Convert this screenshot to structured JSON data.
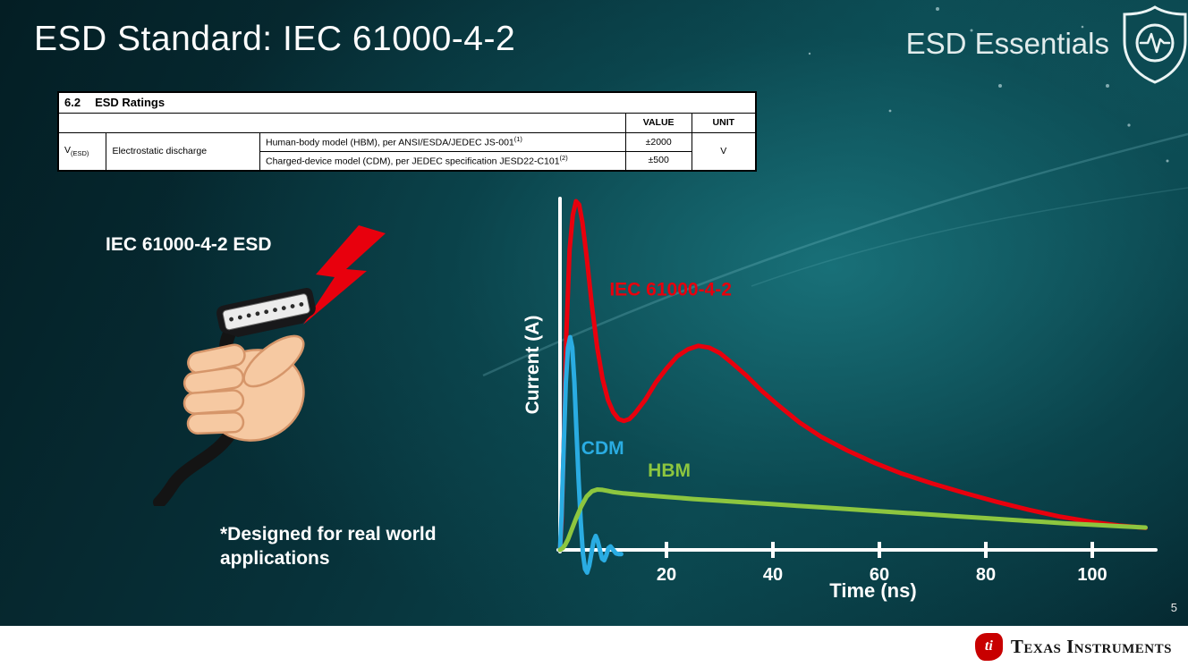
{
  "slide": {
    "title": "ESD Standard: IEC 61000-4-2",
    "series_label": "ESD Essentials",
    "page_number": "5",
    "footer_brand": "Texas Instruments"
  },
  "ratings_table": {
    "caption_number": "6.2",
    "caption_text": "ESD Ratings",
    "value_header": "VALUE",
    "unit_header": "UNIT",
    "param_symbol": "V",
    "param_symbol_sub": "(ESD)",
    "param_name": "Electrostatic discharge",
    "rows": [
      {
        "desc": "Human-body model (HBM), per ANSI/ESDA/JEDEC JS-001",
        "desc_sup": "(1)",
        "value": "±2000"
      },
      {
        "desc": "Charged-device model (CDM), per JEDEC specification JESD22-C101",
        "desc_sup": "(2)",
        "value": "±500"
      }
    ],
    "unit": "V"
  },
  "illustration": {
    "caption": "IEC 61000-4-2 ESD",
    "note_line1": "*Designed for real world",
    "note_line2": "applications"
  },
  "chart_data": {
    "type": "line",
    "title": "",
    "xlabel": "Time (ns)",
    "ylabel": "Current (A)",
    "xlim": [
      0,
      112
    ],
    "ylim": [
      -8,
      105
    ],
    "xticks": [
      20,
      40,
      60,
      80,
      100
    ],
    "yticks": [],
    "grid": false,
    "y_units": "relative amplitude (y axis unlabeled in figure)",
    "legend": "inline curve labels",
    "series": [
      {
        "name": "IEC 61000-4-2",
        "color": "#e8000d",
        "label_at": [
          9.3,
          73
        ],
        "points": [
          [
            0,
            0
          ],
          [
            0.3,
            8
          ],
          [
            0.7,
            30
          ],
          [
            1.2,
            62
          ],
          [
            1.8,
            86
          ],
          [
            2.4,
            96
          ],
          [
            3,
            100
          ],
          [
            3.6,
            99
          ],
          [
            4.2,
            94
          ],
          [
            5,
            84
          ],
          [
            6,
            70
          ],
          [
            7,
            58
          ],
          [
            8,
            49
          ],
          [
            9,
            43
          ],
          [
            10,
            39.5
          ],
          [
            11,
            37.5
          ],
          [
            12,
            37
          ],
          [
            13,
            37.5
          ],
          [
            14,
            39
          ],
          [
            16,
            43
          ],
          [
            18,
            48
          ],
          [
            20,
            52
          ],
          [
            22,
            55.5
          ],
          [
            24,
            57.5
          ],
          [
            26,
            58.5
          ],
          [
            28,
            58
          ],
          [
            30,
            56.5
          ],
          [
            32,
            54
          ],
          [
            35,
            50
          ],
          [
            38,
            45.5
          ],
          [
            41,
            41.5
          ],
          [
            45,
            36.5
          ],
          [
            49,
            32.5
          ],
          [
            54,
            28.5
          ],
          [
            59,
            25
          ],
          [
            64,
            22
          ],
          [
            70,
            19
          ],
          [
            76,
            16.3
          ],
          [
            82,
            13.8
          ],
          [
            88,
            11.5
          ],
          [
            94,
            9.5
          ],
          [
            100,
            8
          ],
          [
            105,
            7
          ],
          [
            110,
            6.3
          ]
        ]
      },
      {
        "name": "CDM",
        "color": "#2aace2",
        "label_at": [
          4.0,
          27.5
        ],
        "points": [
          [
            0,
            0
          ],
          [
            0.3,
            10
          ],
          [
            0.7,
            30
          ],
          [
            1.1,
            48
          ],
          [
            1.5,
            58
          ],
          [
            1.9,
            61
          ],
          [
            2.3,
            58
          ],
          [
            2.7,
            48
          ],
          [
            3.1,
            34
          ],
          [
            3.5,
            20
          ],
          [
            3.9,
            8
          ],
          [
            4.3,
            -1
          ],
          [
            4.7,
            -5.5
          ],
          [
            5.1,
            -6.5
          ],
          [
            5.5,
            -4.5
          ],
          [
            5.9,
            -1
          ],
          [
            6.3,
            2.5
          ],
          [
            6.7,
            4
          ],
          [
            7.1,
            2.5
          ],
          [
            7.5,
            0
          ],
          [
            7.9,
            -2.5
          ],
          [
            8.3,
            -3
          ],
          [
            8.7,
            -1.5
          ],
          [
            9.1,
            0.5
          ],
          [
            9.5,
            1
          ],
          [
            10,
            0
          ],
          [
            10.5,
            -1
          ],
          [
            11,
            -1.2
          ],
          [
            11.5,
            -1.2
          ]
        ]
      },
      {
        "name": "HBM",
        "color": "#8dc63f",
        "label_at": [
          16.5,
          21
        ],
        "points": [
          [
            0,
            0
          ],
          [
            0.5,
            0.5
          ],
          [
            1,
            1.5
          ],
          [
            1.5,
            3
          ],
          [
            2,
            5
          ],
          [
            3,
            9
          ],
          [
            4,
            12.5
          ],
          [
            5,
            15.3
          ],
          [
            6,
            16.8
          ],
          [
            7,
            17.3
          ],
          [
            8,
            17.2
          ],
          [
            9,
            16.9
          ],
          [
            10,
            16.6
          ],
          [
            12,
            16.2
          ],
          [
            15,
            15.8
          ],
          [
            20,
            15.2
          ],
          [
            25,
            14.6
          ],
          [
            30,
            14.1
          ],
          [
            35,
            13.6
          ],
          [
            40,
            13.1
          ],
          [
            45,
            12.6
          ],
          [
            50,
            12.1
          ],
          [
            55,
            11.6
          ],
          [
            60,
            11.1
          ],
          [
            65,
            10.6
          ],
          [
            70,
            10.1
          ],
          [
            75,
            9.6
          ],
          [
            80,
            9.1
          ],
          [
            85,
            8.6
          ],
          [
            90,
            8.1
          ],
          [
            95,
            7.6
          ],
          [
            100,
            7.2
          ],
          [
            105,
            6.8
          ],
          [
            110,
            6.4
          ]
        ]
      }
    ]
  },
  "colors": {
    "background_teal": "#0b4a50",
    "iec_red": "#e8000d",
    "cdm_blue": "#2aace2",
    "hbm_green": "#8dc63f",
    "axis_white": "#ffffff",
    "ti_red": "#c80000"
  }
}
